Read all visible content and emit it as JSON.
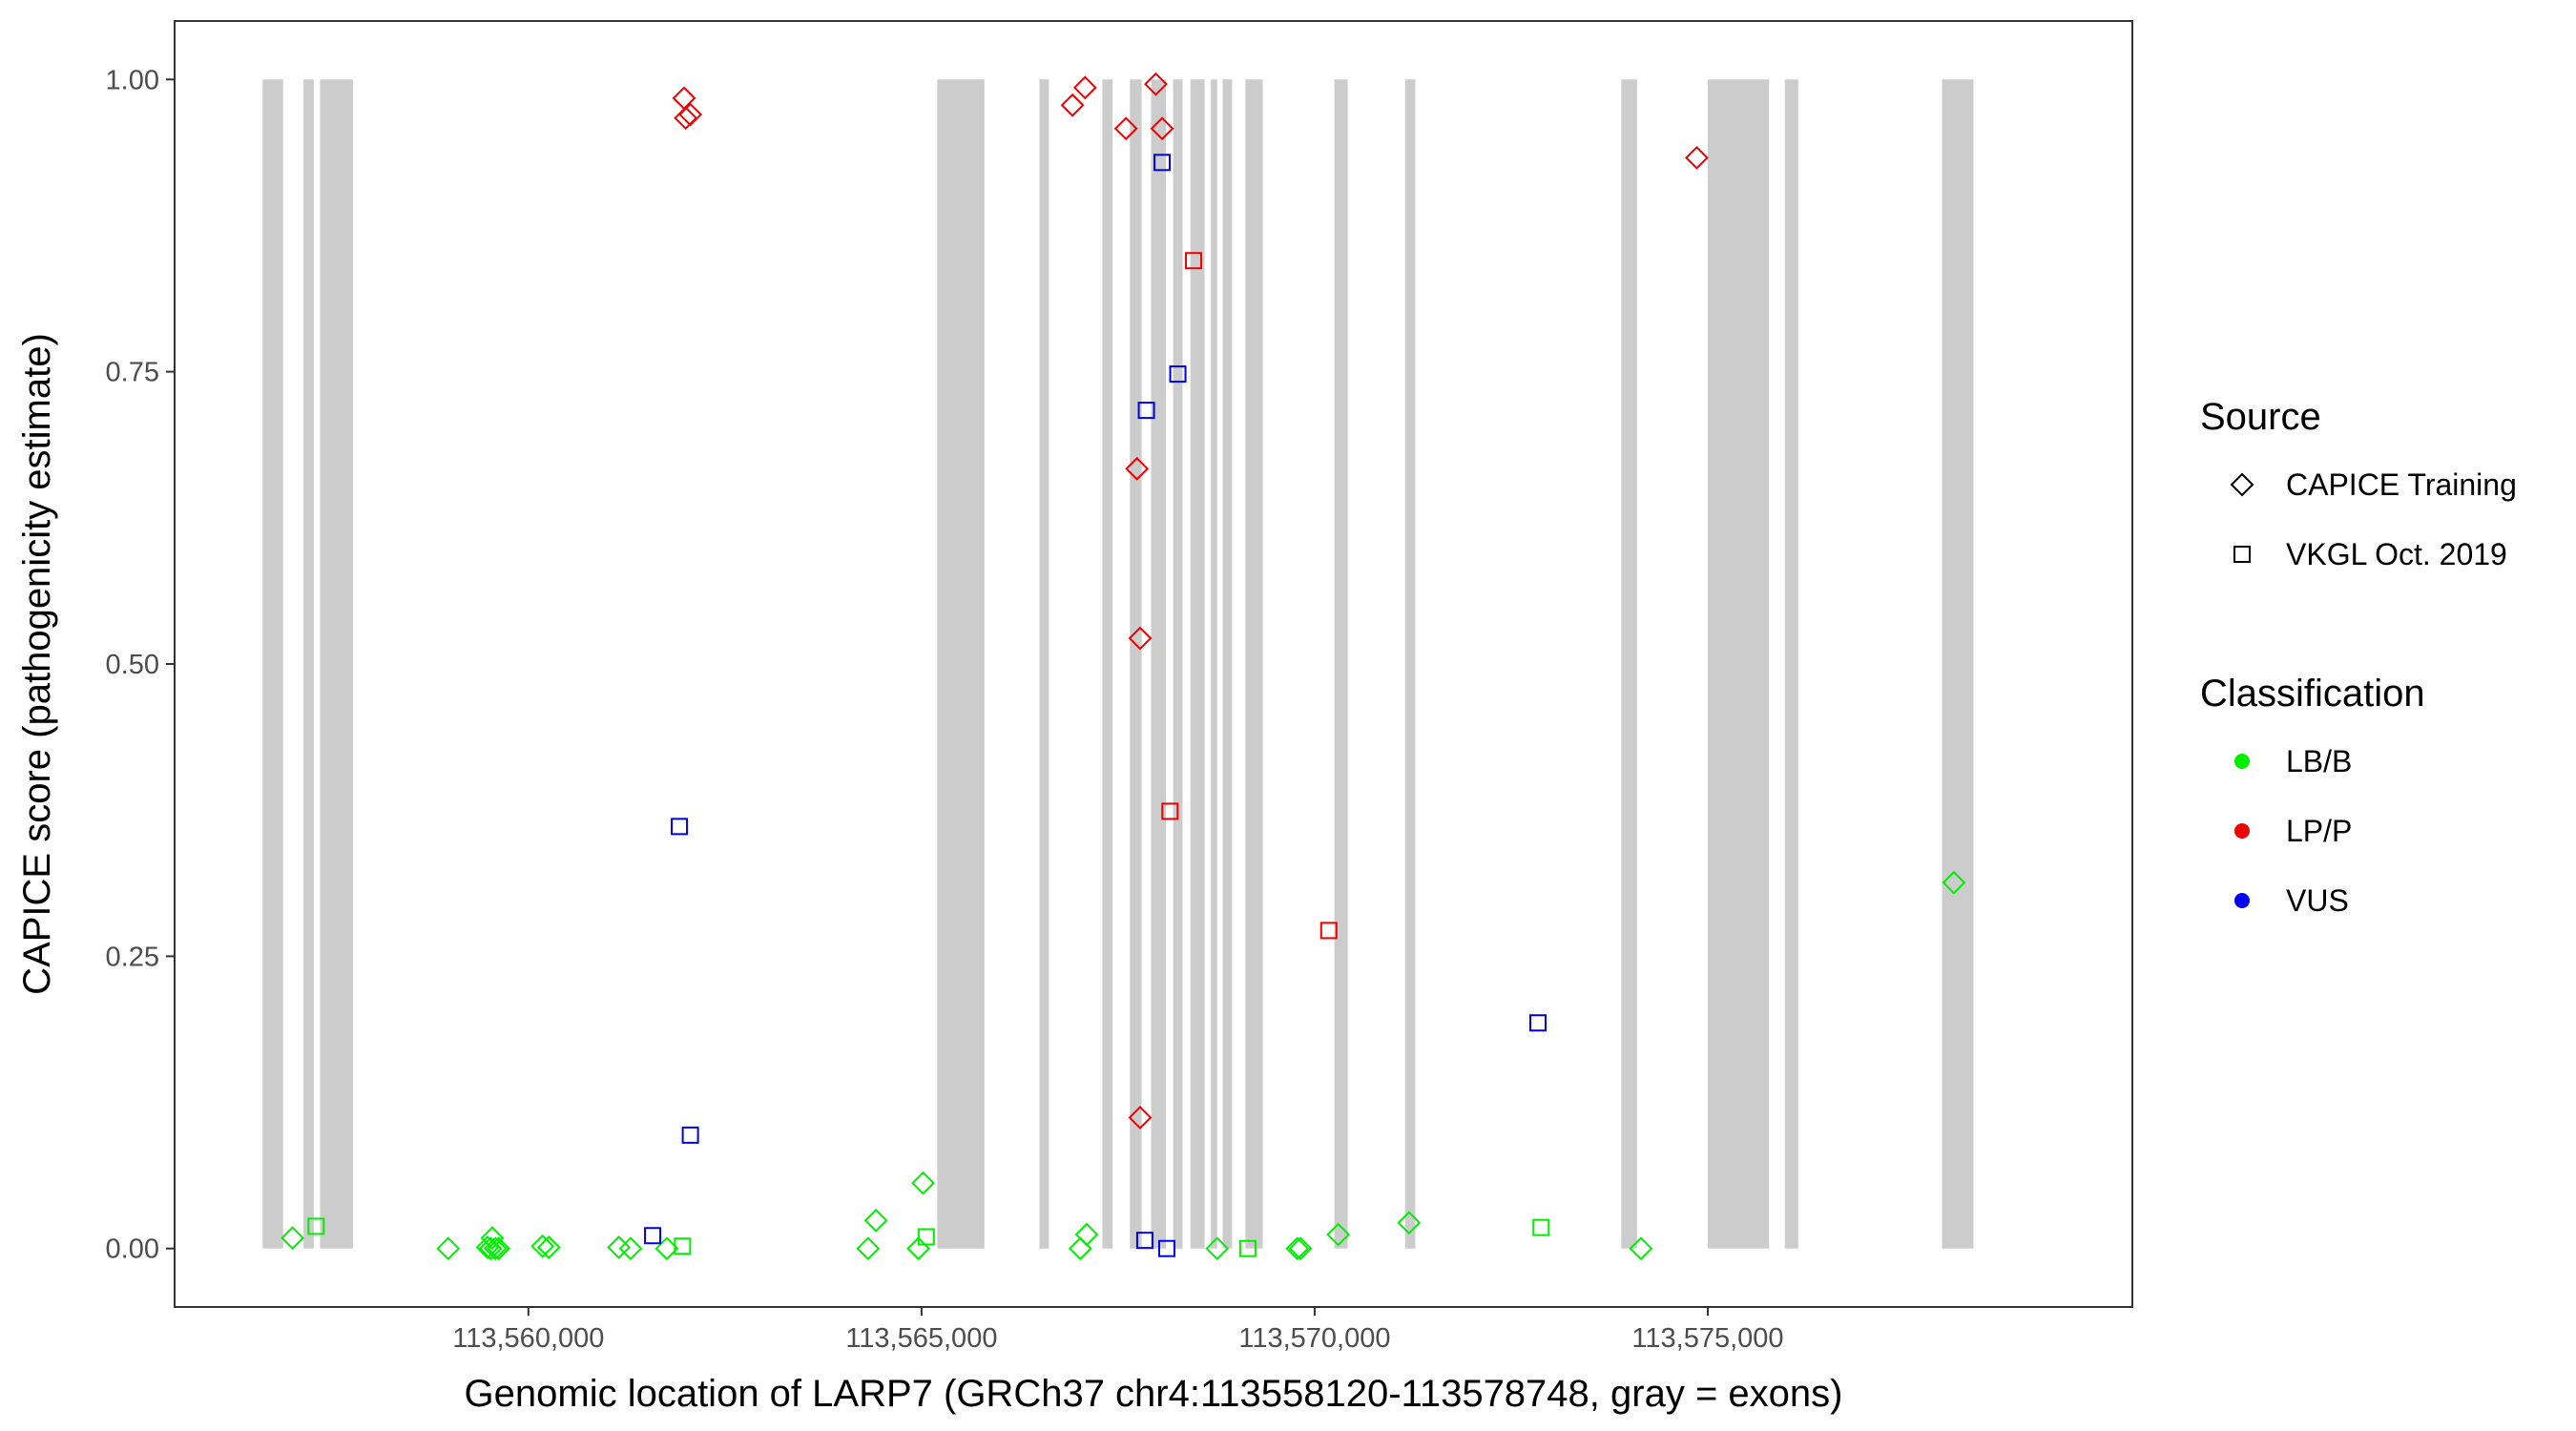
{
  "chart_data": {
    "type": "scatter",
    "xlabel": "Genomic location of LARP7 (GRCh37 chr4:113558120-113578748, gray = exons)",
    "ylabel": "CAPICE score (pathogenicity estimate)",
    "xlim": [
      113555500,
      113580400
    ],
    "ylim": [
      -0.05,
      1.05
    ],
    "x_ticks": [
      113560000,
      113565000,
      113570000,
      113575000
    ],
    "x_tick_labels": [
      "113,560,000",
      "113,565,000",
      "113,570,000",
      "113,575,000"
    ],
    "y_ticks": [
      0,
      0.25,
      0.5,
      0.75,
      1
    ],
    "y_tick_labels": [
      "0.00",
      "0.25",
      "0.50",
      "0.75",
      "1.00"
    ],
    "grid": false,
    "exons": [
      [
        113556620,
        113556880
      ],
      [
        113557140,
        113557270
      ],
      [
        113557350,
        113557770
      ],
      [
        113565200,
        113565800
      ],
      [
        113566500,
        113566620
      ],
      [
        113567300,
        113567430
      ],
      [
        113567650,
        113567800
      ],
      [
        113567920,
        113568110
      ],
      [
        113568200,
        113568320
      ],
      [
        113568420,
        113568600
      ],
      [
        113568680,
        113568760
      ],
      [
        113568830,
        113568950
      ],
      [
        113569120,
        113569340
      ],
      [
        113570250,
        113570420
      ],
      [
        113571150,
        113571280
      ],
      [
        113573900,
        113574100
      ],
      [
        113575000,
        113575780
      ],
      [
        113575980,
        113576150
      ],
      [
        113577980,
        113578380
      ]
    ],
    "legend": {
      "position": "right",
      "source": {
        "title": "Source",
        "entries": [
          {
            "label": "CAPICE Training",
            "shape": "diamond"
          },
          {
            "label": "VKGL Oct. 2019",
            "shape": "square"
          }
        ]
      },
      "classification": {
        "title": "Classification",
        "entries": [
          {
            "label": "LB/B",
            "color": "#00ee00"
          },
          {
            "label": "LP/P",
            "color": "#ee0000"
          },
          {
            "label": "VUS",
            "color": "#0000ee"
          }
        ]
      }
    },
    "points": [
      {
        "x": 113557000,
        "y": 0.009,
        "source": "CAPICE Training",
        "cls": "LB/B"
      },
      {
        "x": 113557300,
        "y": 0.019,
        "source": "VKGL Oct. 2019",
        "cls": "LB/B"
      },
      {
        "x": 113558980,
        "y": 0.0,
        "source": "CAPICE Training",
        "cls": "LB/B"
      },
      {
        "x": 113559540,
        "y": 0.009,
        "source": "CAPICE Training",
        "cls": "LB/B"
      },
      {
        "x": 113559480,
        "y": 0.001,
        "source": "CAPICE Training",
        "cls": "LB/B"
      },
      {
        "x": 113559520,
        "y": 0.0,
        "source": "CAPICE Training",
        "cls": "LB/B"
      },
      {
        "x": 113559580,
        "y": 0.0,
        "source": "CAPICE Training",
        "cls": "LB/B"
      },
      {
        "x": 113559620,
        "y": 0.0,
        "source": "CAPICE Training",
        "cls": "LB/B"
      },
      {
        "x": 113560180,
        "y": 0.002,
        "source": "CAPICE Training",
        "cls": "LB/B"
      },
      {
        "x": 113560260,
        "y": 0.001,
        "source": "CAPICE Training",
        "cls": "LB/B"
      },
      {
        "x": 113561150,
        "y": 0.001,
        "source": "CAPICE Training",
        "cls": "LB/B"
      },
      {
        "x": 113561300,
        "y": 0.0,
        "source": "CAPICE Training",
        "cls": "LB/B"
      },
      {
        "x": 113561760,
        "y": 0.0,
        "source": "CAPICE Training",
        "cls": "LB/B"
      },
      {
        "x": 113561960,
        "y": 0.002,
        "source": "VKGL Oct. 2019",
        "cls": "LB/B"
      },
      {
        "x": 113564320,
        "y": 0.0,
        "source": "CAPICE Training",
        "cls": "LB/B"
      },
      {
        "x": 113564420,
        "y": 0.024,
        "source": "CAPICE Training",
        "cls": "LB/B"
      },
      {
        "x": 113564960,
        "y": 0.0,
        "source": "CAPICE Training",
        "cls": "LB/B"
      },
      {
        "x": 113565020,
        "y": 0.056,
        "source": "CAPICE Training",
        "cls": "LB/B"
      },
      {
        "x": 113565060,
        "y": 0.01,
        "source": "VKGL Oct. 2019",
        "cls": "LB/B"
      },
      {
        "x": 113567020,
        "y": 0.0,
        "source": "CAPICE Training",
        "cls": "LB/B"
      },
      {
        "x": 113567100,
        "y": 0.012,
        "source": "CAPICE Training",
        "cls": "LB/B"
      },
      {
        "x": 113568760,
        "y": 0.0,
        "source": "CAPICE Training",
        "cls": "LB/B"
      },
      {
        "x": 113569150,
        "y": 0.0,
        "source": "VKGL Oct. 2019",
        "cls": "LB/B"
      },
      {
        "x": 113569780,
        "y": 0.0,
        "source": "CAPICE Training",
        "cls": "LB/B"
      },
      {
        "x": 113569820,
        "y": 0.0,
        "source": "CAPICE Training",
        "cls": "LB/B"
      },
      {
        "x": 113570300,
        "y": 0.012,
        "source": "CAPICE Training",
        "cls": "LB/B"
      },
      {
        "x": 113571200,
        "y": 0.022,
        "source": "CAPICE Training",
        "cls": "LB/B"
      },
      {
        "x": 113572880,
        "y": 0.018,
        "source": "VKGL Oct. 2019",
        "cls": "LB/B"
      },
      {
        "x": 113574150,
        "y": 0.0,
        "source": "CAPICE Training",
        "cls": "LB/B"
      },
      {
        "x": 113578130,
        "y": 0.313,
        "source": "CAPICE Training",
        "cls": "LB/B"
      },
      {
        "x": 113561980,
        "y": 0.984,
        "source": "CAPICE Training",
        "cls": "LP/P"
      },
      {
        "x": 113562000,
        "y": 0.967,
        "source": "CAPICE Training",
        "cls": "LP/P"
      },
      {
        "x": 113562060,
        "y": 0.97,
        "source": "CAPICE Training",
        "cls": "LP/P"
      },
      {
        "x": 113566920,
        "y": 0.978,
        "source": "CAPICE Training",
        "cls": "LP/P"
      },
      {
        "x": 113567080,
        "y": 0.993,
        "source": "CAPICE Training",
        "cls": "LP/P"
      },
      {
        "x": 113567600,
        "y": 0.958,
        "source": "CAPICE Training",
        "cls": "LP/P"
      },
      {
        "x": 113567740,
        "y": 0.667,
        "source": "CAPICE Training",
        "cls": "LP/P"
      },
      {
        "x": 113567780,
        "y": 0.522,
        "source": "CAPICE Training",
        "cls": "LP/P"
      },
      {
        "x": 113567780,
        "y": 0.112,
        "source": "CAPICE Training",
        "cls": "LP/P"
      },
      {
        "x": 113567980,
        "y": 0.996,
        "source": "CAPICE Training",
        "cls": "LP/P"
      },
      {
        "x": 113568060,
        "y": 0.958,
        "source": "CAPICE Training",
        "cls": "LP/P"
      },
      {
        "x": 113568160,
        "y": 0.374,
        "source": "VKGL Oct. 2019",
        "cls": "LP/P"
      },
      {
        "x": 113568460,
        "y": 0.845,
        "source": "VKGL Oct. 2019",
        "cls": "LP/P"
      },
      {
        "x": 113570180,
        "y": 0.272,
        "source": "VKGL Oct. 2019",
        "cls": "LP/P"
      },
      {
        "x": 113574860,
        "y": 0.933,
        "source": "CAPICE Training",
        "cls": "LP/P"
      },
      {
        "x": 113561580,
        "y": 0.011,
        "source": "VKGL Oct. 2019",
        "cls": "VUS"
      },
      {
        "x": 113561920,
        "y": 0.361,
        "source": "VKGL Oct. 2019",
        "cls": "VUS"
      },
      {
        "x": 113562060,
        "y": 0.097,
        "source": "VKGL Oct. 2019",
        "cls": "VUS"
      },
      {
        "x": 113567860,
        "y": 0.717,
        "source": "VKGL Oct. 2019",
        "cls": "VUS"
      },
      {
        "x": 113567840,
        "y": 0.007,
        "source": "VKGL Oct. 2019",
        "cls": "VUS"
      },
      {
        "x": 113568060,
        "y": 0.929,
        "source": "VKGL Oct. 2019",
        "cls": "VUS"
      },
      {
        "x": 113568120,
        "y": 0.0,
        "source": "VKGL Oct. 2019",
        "cls": "VUS"
      },
      {
        "x": 113568260,
        "y": 0.748,
        "source": "VKGL Oct. 2019",
        "cls": "VUS"
      },
      {
        "x": 113572840,
        "y": 0.193,
        "source": "VKGL Oct. 2019",
        "cls": "VUS"
      }
    ]
  }
}
